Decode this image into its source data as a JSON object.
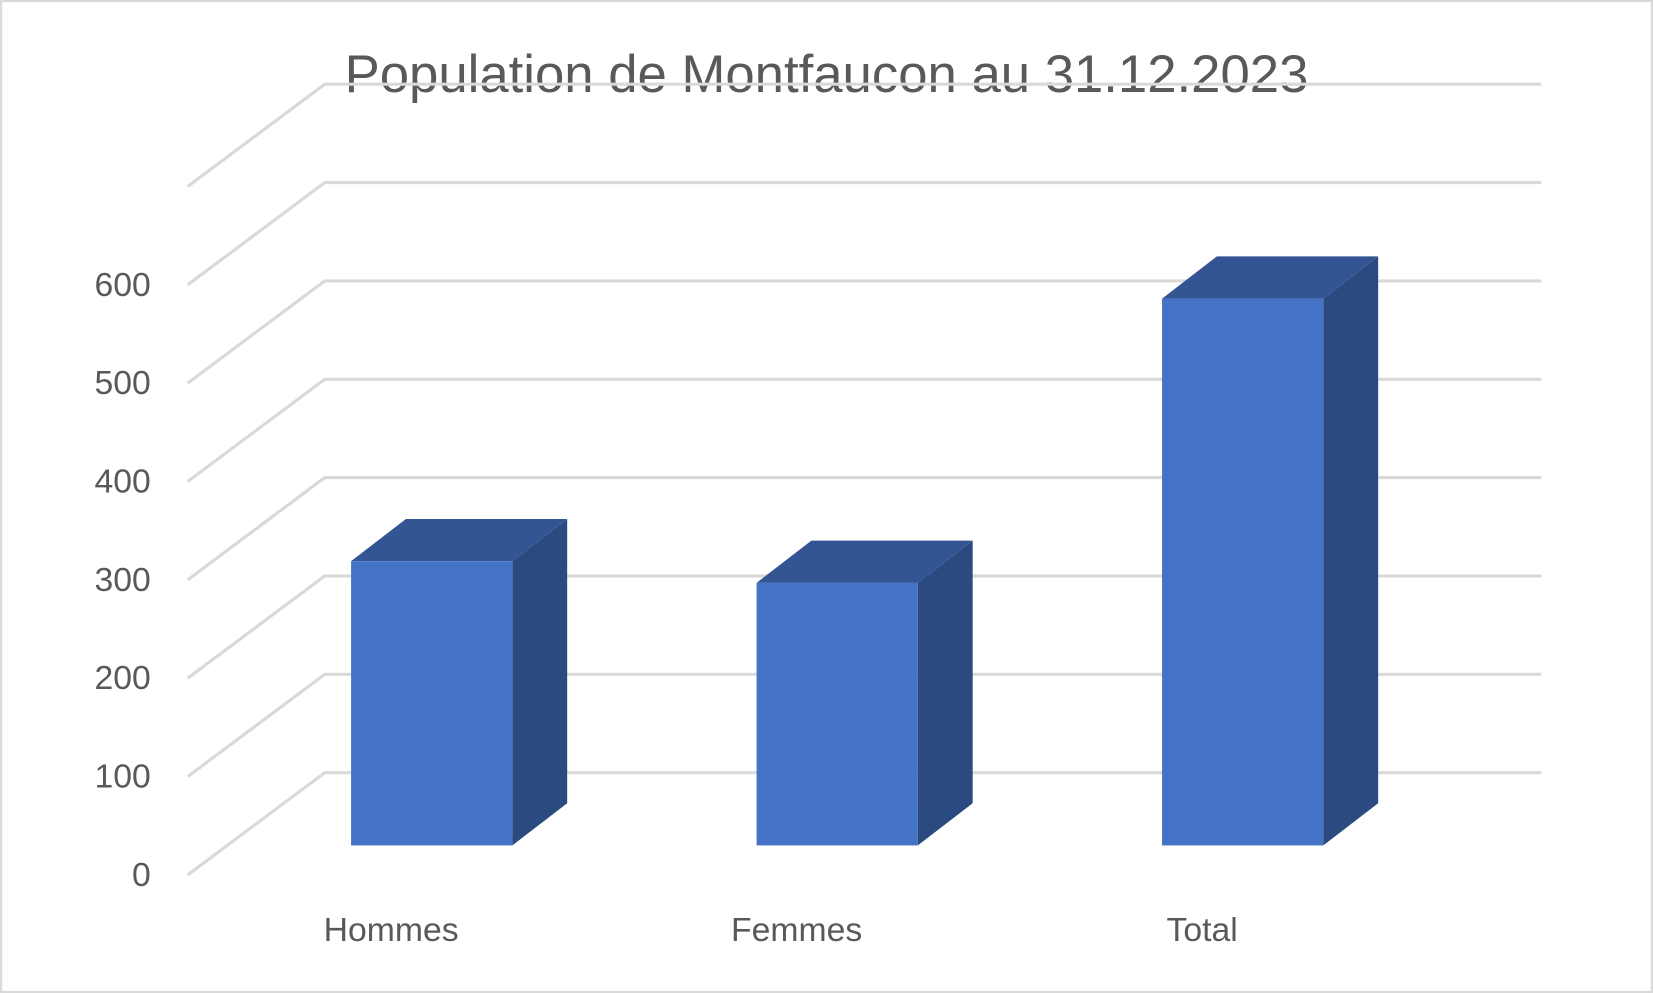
{
  "chart_data": {
    "type": "bar3d",
    "title": "Population de Montfaucon au 31.12.2023",
    "categories": [
      "Hommes",
      "Femmes",
      "Total"
    ],
    "values": [
      289,
      267,
      556
    ],
    "color": "#4472c4",
    "ylim": [
      0,
      700
    ],
    "yticks": [
      0,
      100,
      200,
      300,
      400,
      500,
      600
    ],
    "grid": true
  }
}
